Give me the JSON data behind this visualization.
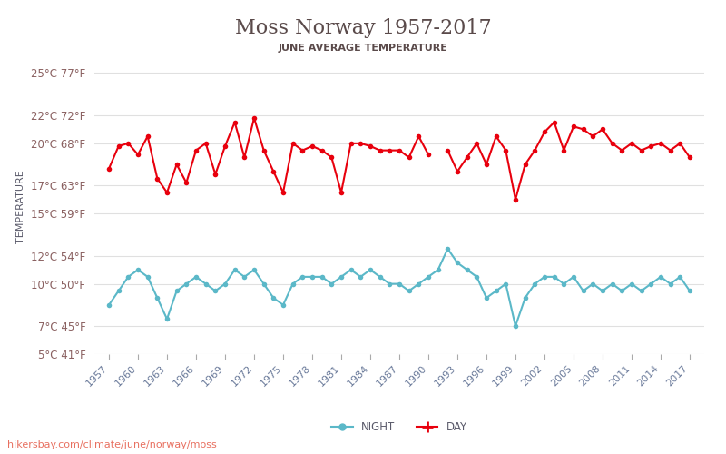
{
  "title": "Moss Norway 1957-2017",
  "subtitle": "JUNE AVERAGE TEMPERATURE",
  "ylabel": "TEMPERATURE",
  "watermark": "hikersbay.com/climate/june/norway/moss",
  "ylim_min": 5,
  "ylim_max": 26,
  "yticks_c": [
    5,
    7,
    10,
    12,
    15,
    17,
    20,
    22,
    25
  ],
  "yticks_f": [
    41,
    45,
    50,
    54,
    59,
    63,
    68,
    72,
    77
  ],
  "day_color": "#e8000d",
  "night_color": "#5bb8c8",
  "title_color": "#5a4a4a",
  "subtitle_color": "#5a4a4a",
  "ylabel_color": "#5a5a6a",
  "tick_color": "#8a6060",
  "grid_color": "#e0e0e0",
  "bg_color": "#ffffff",
  "watermark_color": "#e87060",
  "day_data": {
    "1957": 18.2,
    "1958": 19.8,
    "1959": 20.0,
    "1960": 19.2,
    "1961": 20.5,
    "1962": 17.5,
    "1963": 16.5,
    "1964": 18.5,
    "1965": 17.2,
    "1966": 19.5,
    "1967": 20.0,
    "1968": 17.8,
    "1969": 19.8,
    "1970": 21.5,
    "1971": 19.0,
    "1972": 21.8,
    "1973": 19.5,
    "1974": 18.0,
    "1975": 16.5,
    "1976": 20.0,
    "1977": 19.5,
    "1978": 19.8,
    "1979": 19.5,
    "1980": 19.0,
    "1981": 16.5,
    "1982": 20.0,
    "1983": 20.0,
    "1984": 19.8,
    "1985": 19.5,
    "1986": 19.5,
    "1987": 19.5,
    "1988": 19.0,
    "1989": 20.5,
    "1990": 19.2,
    "1992": 19.5,
    "1993": 18.0,
    "1994": 19.0,
    "1995": 20.0,
    "1996": 18.5,
    "1997": 20.5,
    "1998": 19.5,
    "1999": 16.0,
    "2000": 18.5,
    "2001": 19.5,
    "2002": 20.8,
    "2003": 21.5,
    "2004": 19.5,
    "2005": 21.2,
    "2006": 21.0,
    "2007": 20.5,
    "2008": 21.0,
    "2009": 20.0,
    "2010": 19.5,
    "2011": 20.0,
    "2012": 19.5,
    "2013": 19.8,
    "2014": 20.0,
    "2015": 19.5,
    "2016": 20.0,
    "2017": 19.0
  },
  "night_data": {
    "1957": 8.5,
    "1958": 9.5,
    "1959": 10.5,
    "1960": 11.0,
    "1961": 10.5,
    "1962": 9.0,
    "1963": 7.5,
    "1964": 9.5,
    "1965": 10.0,
    "1966": 10.5,
    "1967": 10.0,
    "1968": 9.5,
    "1969": 10.0,
    "1970": 11.0,
    "1971": 10.5,
    "1972": 11.0,
    "1973": 10.0,
    "1974": 9.0,
    "1975": 8.5,
    "1976": 10.0,
    "1977": 10.5,
    "1978": 10.5,
    "1979": 10.5,
    "1980": 10.0,
    "1981": 10.5,
    "1982": 11.0,
    "1983": 10.5,
    "1984": 11.0,
    "1985": 10.5,
    "1986": 10.0,
    "1987": 10.0,
    "1988": 9.5,
    "1989": 10.0,
    "1990": 10.5,
    "1991": 11.0,
    "1992": 12.5,
    "1993": 11.5,
    "1994": 11.0,
    "1995": 10.5,
    "1996": 9.0,
    "1997": 9.5,
    "1998": 10.0,
    "1999": 7.0,
    "2000": 9.0,
    "2001": 10.0,
    "2002": 10.5,
    "2003": 10.5,
    "2004": 10.0,
    "2005": 10.5,
    "2006": 9.5,
    "2007": 10.0,
    "2008": 9.5,
    "2009": 10.0,
    "2010": 9.5,
    "2011": 10.0,
    "2012": 9.5,
    "2013": 10.0,
    "2014": 10.5,
    "2015": 10.0,
    "2016": 10.5,
    "2017": 9.5
  }
}
